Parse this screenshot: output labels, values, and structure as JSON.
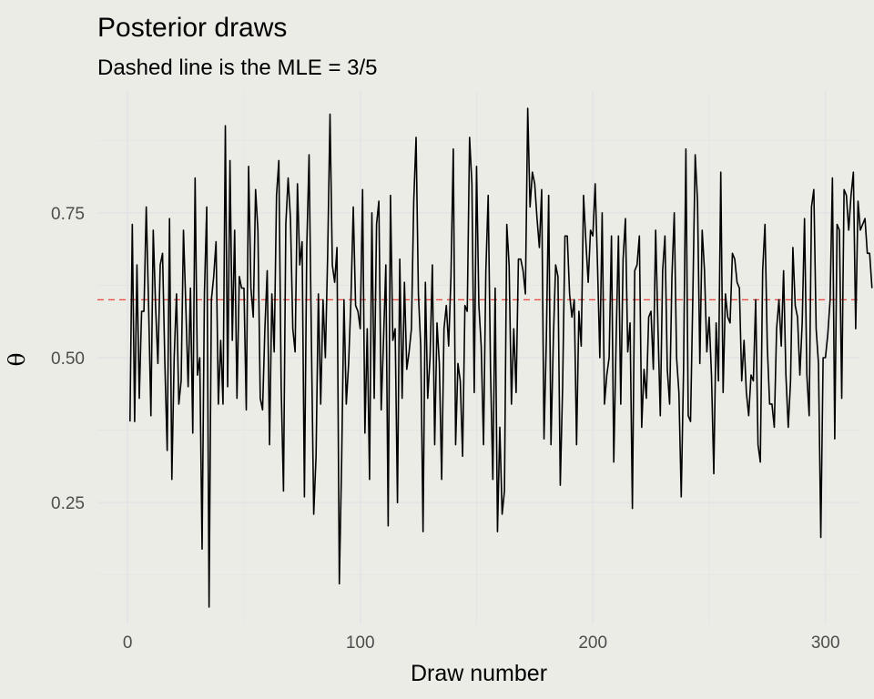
{
  "chart_data": {
    "type": "line",
    "title": "Posterior draws",
    "subtitle": "Dashed line is the MLE = 3/5",
    "xlabel": "Draw number",
    "ylabel": "θ",
    "xlim": [
      -13,
      315
    ],
    "ylim": [
      0.04,
      0.96
    ],
    "x_ticks": [
      0,
      100,
      200,
      300
    ],
    "x_tick_labels": [
      "0",
      "100",
      "200",
      "300"
    ],
    "y_ticks": [
      0.25,
      0.5,
      0.75
    ],
    "y_tick_labels": [
      "0.25",
      "0.50",
      "0.75"
    ],
    "grid": true,
    "legend": "none",
    "background_color": "#ecece6",
    "grid_color": "#e4e4e6",
    "hline": {
      "y": 0.6,
      "style": "dashed",
      "color": "#e8302a"
    },
    "series": [
      {
        "color": "#000000",
        "x_start": 1,
        "x_step": 1,
        "values": [
          0.39,
          0.73,
          0.39,
          0.66,
          0.43,
          0.58,
          0.58,
          0.76,
          0.59,
          0.4,
          0.72,
          0.59,
          0.49,
          0.66,
          0.68,
          0.49,
          0.34,
          0.74,
          0.29,
          0.5,
          0.61,
          0.42,
          0.46,
          0.72,
          0.59,
          0.45,
          0.62,
          0.37,
          0.81,
          0.47,
          0.5,
          0.17,
          0.61,
          0.76,
          0.07,
          0.6,
          0.64,
          0.7,
          0.42,
          0.53,
          0.42,
          0.9,
          0.45,
          0.84,
          0.53,
          0.72,
          0.43,
          0.64,
          0.62,
          0.62,
          0.41,
          0.83,
          0.62,
          0.57,
          0.79,
          0.72,
          0.43,
          0.41,
          0.55,
          0.65,
          0.35,
          0.61,
          0.51,
          0.78,
          0.84,
          0.45,
          0.27,
          0.73,
          0.81,
          0.74,
          0.55,
          0.51,
          0.8,
          0.66,
          0.7,
          0.26,
          0.69,
          0.85,
          0.53,
          0.23,
          0.33,
          0.61,
          0.42,
          0.6,
          0.5,
          0.68,
          0.92,
          0.66,
          0.63,
          0.69,
          0.11,
          0.32,
          0.6,
          0.42,
          0.49,
          0.6,
          0.76,
          0.59,
          0.58,
          0.55,
          0.79,
          0.37,
          0.55,
          0.29,
          0.75,
          0.43,
          0.73,
          0.77,
          0.41,
          0.53,
          0.66,
          0.21,
          0.78,
          0.53,
          0.55,
          0.25,
          0.67,
          0.43,
          0.63,
          0.48,
          0.51,
          0.55,
          0.77,
          0.88,
          0.61,
          0.52,
          0.2,
          0.63,
          0.43,
          0.5,
          0.66,
          0.35,
          0.56,
          0.49,
          0.29,
          0.55,
          0.59,
          0.52,
          0.64,
          0.86,
          0.35,
          0.49,
          0.46,
          0.33,
          0.59,
          0.58,
          0.88,
          0.8,
          0.44,
          0.83,
          0.59,
          0.52,
          0.35,
          0.65,
          0.78,
          0.48,
          0.29,
          0.62,
          0.2,
          0.38,
          0.23,
          0.27,
          0.73,
          0.66,
          0.42,
          0.55,
          0.44,
          0.67,
          0.67,
          0.65,
          0.61,
          0.93,
          0.76,
          0.82,
          0.8,
          0.74,
          0.69,
          0.79,
          0.36,
          0.53,
          0.78,
          0.35,
          0.53,
          0.66,
          0.64,
          0.28,
          0.45,
          0.71,
          0.71,
          0.61,
          0.57,
          0.6,
          0.35,
          0.58,
          0.52,
          0.78,
          0.7,
          0.63,
          0.72,
          0.71,
          0.8,
          0.66,
          0.5,
          0.75,
          0.42,
          0.47,
          0.5,
          0.71,
          0.32,
          0.53,
          0.71,
          0.42,
          0.67,
          0.74,
          0.51,
          0.56,
          0.24,
          0.65,
          0.66,
          0.71,
          0.38,
          0.48,
          0.43,
          0.57,
          0.58,
          0.48,
          0.72,
          0.55,
          0.4,
          0.65,
          0.71,
          0.48,
          0.42,
          0.64,
          0.75,
          0.5,
          0.44,
          0.26,
          0.48,
          0.86,
          0.4,
          0.39,
          0.61,
          0.85,
          0.77,
          0.49,
          0.72,
          0.65,
          0.51,
          0.57,
          0.47,
          0.3,
          0.56,
          0.46,
          0.82,
          0.44,
          0.61,
          0.57,
          0.56,
          0.68,
          0.67,
          0.63,
          0.62,
          0.46,
          0.53,
          0.44,
          0.4,
          0.47,
          0.46,
          0.6,
          0.35,
          0.32,
          0.65,
          0.73,
          0.52,
          0.42,
          0.42,
          0.38,
          0.55,
          0.6,
          0.52,
          0.65,
          0.47,
          0.38,
          0.46,
          0.69,
          0.59,
          0.57,
          0.47,
          0.56,
          0.74,
          0.47,
          0.4,
          0.76,
          0.79,
          0.55,
          0.49,
          0.19,
          0.5,
          0.5,
          0.54,
          0.6,
          0.81,
          0.36,
          0.73,
          0.72,
          0.43,
          0.79,
          0.78,
          0.72,
          0.78,
          0.82,
          0.55,
          0.77,
          0.72,
          0.73,
          0.74,
          0.68,
          0.68,
          0.62
        ]
      }
    ]
  }
}
